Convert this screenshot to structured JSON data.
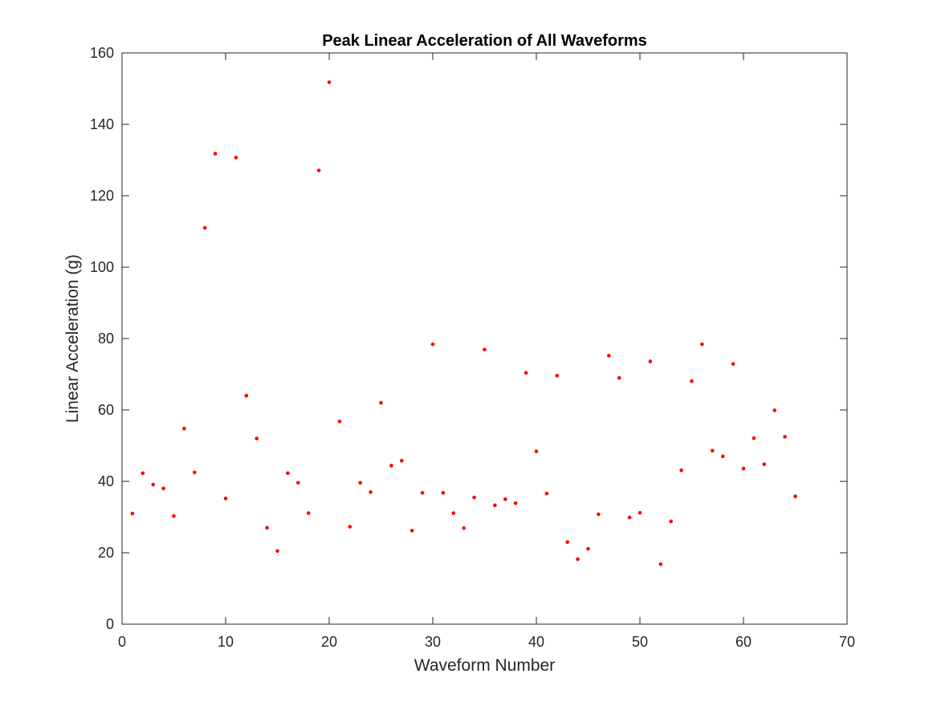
{
  "chart_data": {
    "type": "scatter",
    "title": "Peak Linear Acceleration of All Waveforms",
    "xlabel": "Waveform Number",
    "ylabel": "Linear Acceleration (g)",
    "xlim": [
      0,
      70
    ],
    "ylim": [
      0,
      160
    ],
    "x_ticks": [
      0,
      10,
      20,
      30,
      40,
      50,
      60,
      70
    ],
    "y_ticks": [
      0,
      20,
      40,
      60,
      80,
      100,
      120,
      140,
      160
    ],
    "grid": false,
    "box": true,
    "marker_color": "#ff0000",
    "axis_color": "#262626",
    "series": [
      {
        "x": [
          1,
          2,
          3,
          4,
          5,
          6,
          7,
          8,
          9,
          10,
          11,
          12,
          13,
          14,
          15,
          16,
          17,
          18,
          19,
          20,
          21,
          22,
          23,
          24,
          25,
          26,
          27,
          28,
          29,
          30,
          31,
          32,
          33,
          34,
          35,
          36,
          37,
          38,
          39,
          40,
          41,
          42,
          43,
          44,
          45,
          46,
          47,
          48,
          49,
          50,
          51,
          52,
          53,
          54,
          55,
          56,
          57,
          58,
          59,
          60,
          61,
          62,
          63,
          64,
          65
        ],
        "y": [
          31,
          42.3,
          39.1,
          38,
          30.3,
          54.8,
          42.5,
          111,
          131.8,
          35.2,
          130.7,
          64,
          52,
          27,
          20.5,
          42.3,
          39.6,
          31.1,
          127.1,
          151.8,
          56.8,
          27.3,
          39.6,
          37,
          62,
          44.4,
          45.8,
          26.2,
          36.8,
          78.4,
          36.8,
          31.1,
          26.9,
          35.5,
          76.9,
          33.3,
          35,
          33.9,
          70.4,
          48.4,
          36.6,
          69.6,
          23,
          18.2,
          21.1,
          30.8,
          75.2,
          69,
          29.9,
          31.2,
          73.6,
          16.8,
          28.8,
          43.1,
          68.1,
          78.4,
          48.6,
          47,
          72.9,
          43.6,
          52.1,
          44.8,
          59.9,
          52.5,
          35.8
        ]
      }
    ]
  }
}
